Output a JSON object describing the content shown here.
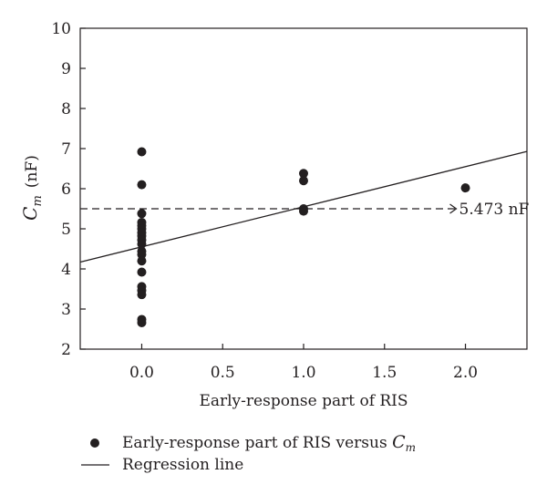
{
  "chart_data": {
    "type": "scatter",
    "x_axis": {
      "label": "Early-response part of RIS",
      "ticks": [
        "0.0",
        "0.5",
        "1.0",
        "1.5",
        "2.0"
      ],
      "tick_values": [
        0,
        0.5,
        1.0,
        1.5,
        2.0
      ],
      "range": [
        -0.38,
        2.38
      ]
    },
    "y_axis": {
      "label_main": "C",
      "label_sub": "m",
      "label_unit": "(nF)",
      "ticks": [
        "2",
        "3",
        "4",
        "5",
        "6",
        "7",
        "8",
        "9",
        "10"
      ],
      "tick_values": [
        2,
        3,
        4,
        5,
        6,
        7,
        8,
        9,
        10
      ],
      "range": [
        2,
        10
      ]
    },
    "series": [
      {
        "kind": "points",
        "legend_text": "Early-response part of RIS versus ",
        "legend_sub_main": "C",
        "legend_sub": "m",
        "points": [
          [
            0,
            6.92
          ],
          [
            0,
            6.1
          ],
          [
            0,
            5.38
          ],
          [
            0,
            5.16
          ],
          [
            0,
            5.08
          ],
          [
            0,
            5.0
          ],
          [
            0,
            4.9
          ],
          [
            0,
            4.82
          ],
          [
            0,
            4.72
          ],
          [
            0,
            4.62
          ],
          [
            0,
            4.44
          ],
          [
            0,
            4.36
          ],
          [
            0,
            4.2
          ],
          [
            0,
            3.92
          ],
          [
            0,
            3.56
          ],
          [
            0,
            3.46
          ],
          [
            0,
            3.36
          ],
          [
            0,
            2.74
          ],
          [
            0,
            2.66
          ],
          [
            1,
            6.38
          ],
          [
            1,
            6.2
          ],
          [
            1,
            5.5
          ],
          [
            1,
            5.44
          ],
          [
            2,
            6.02
          ]
        ]
      },
      {
        "kind": "line",
        "legend_text": "Regression line",
        "intercept": 4.55,
        "slope": 1.0
      }
    ],
    "reference_line": {
      "y": 5.5,
      "style": "dashed",
      "label": "5.473 nF"
    },
    "grid": false,
    "legend_position": "bottom-left"
  }
}
